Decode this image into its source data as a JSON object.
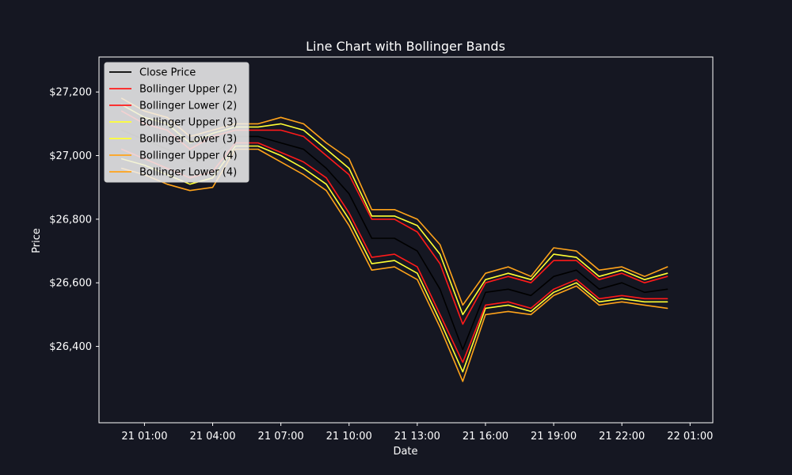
{
  "chart_data": {
    "type": "line",
    "title": "Line Chart with Bollinger Bands",
    "xlabel": "Date",
    "ylabel": "Price",
    "ylim": [
      26160,
      27310
    ],
    "xlim": [
      "2023-04-20T23:00",
      "2023-04-22T02:00"
    ],
    "x_ticks": [
      "21 01:00",
      "21 04:00",
      "21 07:00",
      "21 10:00",
      "21 13:00",
      "21 16:00",
      "21 19:00",
      "21 22:00",
      "22 01:00"
    ],
    "y_ticks": [
      "$26,400",
      "$26,600",
      "$26,800",
      "$27,000",
      "$27,200"
    ],
    "y_tick_values": [
      26400,
      26600,
      26800,
      27000,
      27200
    ],
    "grid": false,
    "legend_position": "top-left",
    "x": [
      "21 00:00",
      "21 01:00",
      "21 02:00",
      "21 03:00",
      "21 04:00",
      "21 05:00",
      "21 06:00",
      "21 07:00",
      "21 08:00",
      "21 09:00",
      "21 10:00",
      "21 11:00",
      "21 12:00",
      "21 13:00",
      "21 14:00",
      "21 15:00",
      "21 16:00",
      "21 17:00",
      "21 18:00",
      "21 19:00",
      "21 20:00",
      "21 21:00",
      "21 22:00",
      "21 23:00",
      "22 00:00"
    ],
    "series": [
      {
        "name": "Close Price",
        "color": "#000000",
        "values": [
          27080,
          27050,
          27020,
          26980,
          27000,
          27060,
          27060,
          27040,
          27020,
          26960,
          26880,
          26740,
          26740,
          26700,
          26580,
          26390,
          26570,
          26580,
          26560,
          26620,
          26640,
          26580,
          26600,
          26570,
          26580
        ]
      },
      {
        "name": "Bollinger Upper (2)",
        "color": "#ff1a1a",
        "values": [
          27140,
          27100,
          27080,
          27020,
          27060,
          27080,
          27080,
          27080,
          27060,
          27000,
          26940,
          26800,
          26800,
          26760,
          26660,
          26470,
          26600,
          26620,
          26600,
          26670,
          26670,
          26610,
          26630,
          26600,
          26620
        ]
      },
      {
        "name": "Bollinger Lower (2)",
        "color": "#ff1a1a",
        "values": [
          27020,
          26990,
          26960,
          26930,
          26950,
          27040,
          27040,
          27010,
          26980,
          26930,
          26820,
          26680,
          26690,
          26650,
          26500,
          26350,
          26530,
          26540,
          26520,
          26580,
          26610,
          26550,
          26560,
          26550,
          26550
        ]
      },
      {
        "name": "Bollinger Upper (3)",
        "color": "#ffff33",
        "values": [
          27160,
          27120,
          27100,
          27040,
          27070,
          27090,
          27090,
          27100,
          27080,
          27020,
          26960,
          26810,
          26810,
          26780,
          26690,
          26500,
          26610,
          26630,
          26610,
          26690,
          26680,
          26620,
          26640,
          26610,
          26630
        ]
      },
      {
        "name": "Bollinger Lower (3)",
        "color": "#ffff33",
        "values": [
          26990,
          26970,
          26940,
          26910,
          26930,
          27030,
          27030,
          27000,
          26960,
          26910,
          26800,
          26660,
          26670,
          26630,
          26480,
          26320,
          26520,
          26530,
          26510,
          26570,
          26600,
          26540,
          26550,
          26540,
          26540
        ]
      },
      {
        "name": "Bollinger Upper (4)",
        "color": "#ffa31a",
        "values": [
          27180,
          27140,
          27120,
          27060,
          27080,
          27100,
          27100,
          27120,
          27100,
          27040,
          26990,
          26830,
          26830,
          26800,
          26720,
          26530,
          26630,
          26650,
          26620,
          26710,
          26700,
          26640,
          26650,
          26620,
          26650
        ]
      },
      {
        "name": "Bollinger Lower (4)",
        "color": "#ffa31a",
        "values": [
          26960,
          26940,
          26910,
          26890,
          26900,
          27020,
          27020,
          26980,
          26940,
          26890,
          26780,
          26640,
          26650,
          26610,
          26460,
          26290,
          26500,
          26510,
          26500,
          26560,
          26590,
          26530,
          26540,
          26530,
          26520
        ]
      }
    ]
  }
}
